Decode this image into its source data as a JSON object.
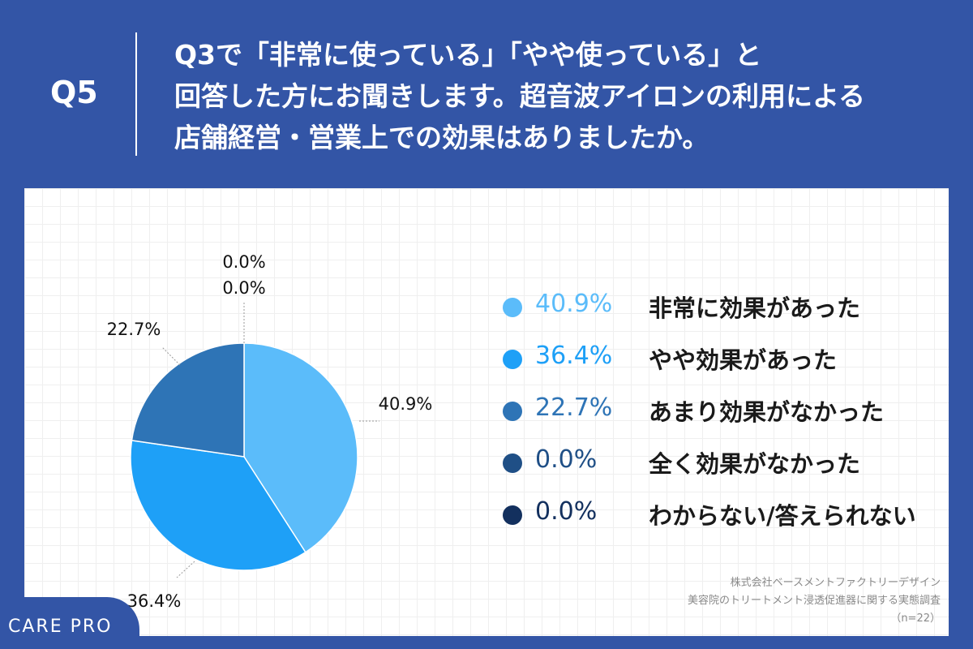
{
  "header": {
    "question_number": "Q5",
    "question_lines": [
      "Q3で「非常に使っている」「やや使っている」と",
      "回答した方にお聞きします。超音波アイロンの利用による",
      "店舗経営・営業上での効果はありましたか。"
    ]
  },
  "chart_data": {
    "type": "pie",
    "categories": [
      "非常に効果があった",
      "やや効果があった",
      "あまり効果がなかった",
      "全く効果がなかった",
      "わからない/答えられない"
    ],
    "values": [
      40.9,
      36.4,
      22.7,
      0.0,
      0.0
    ],
    "value_labels": [
      "40.9%",
      "36.4%",
      "22.7%",
      "0.0%",
      "0.0%"
    ],
    "colors": [
      "#5bbcfa",
      "#1ea0f7",
      "#2e74b6",
      "#1f4f86",
      "#13305e"
    ],
    "legend_text_colors": [
      "#5bbcfa",
      "#1ea0f7",
      "#2e74b6",
      "#1f4f86",
      "#13305e"
    ],
    "legend_position": "right",
    "title": ""
  },
  "source": {
    "line1": "株式会社ベースメントファクトリーデザイン",
    "line2": "美容院のトリートメント浸透促進器に関する実態調査",
    "line3": "（n=22）"
  },
  "logo": {
    "text": "CARE PRO"
  }
}
